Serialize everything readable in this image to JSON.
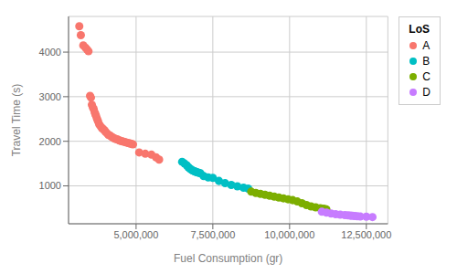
{
  "chart_data": {
    "type": "scatter",
    "xlabel": "Fuel Consumption (gr)",
    "ylabel": "Travel Time (s)",
    "legend_title": "LoS",
    "legend": "right",
    "grid": true,
    "xlim": [
      2800000,
      13200000
    ],
    "ylim": [
      150,
      4800
    ],
    "xticks": [
      {
        "value": 5000000,
        "label": "5,000,000"
      },
      {
        "value": 7500000,
        "label": "7,500,000"
      },
      {
        "value": 10000000,
        "label": "10,000,000"
      },
      {
        "value": 12500000,
        "label": "12,500,000"
      }
    ],
    "yticks": [
      1000,
      2000,
      3000,
      4000
    ],
    "series": [
      {
        "name": "A",
        "color": "#F8766D",
        "x": [
          3150000,
          3200000,
          3280000,
          3350000,
          3400000,
          3450000,
          3500000,
          3530000,
          3560000,
          3590000,
          3620000,
          3650000,
          3680000,
          3700000,
          3730000,
          3760000,
          3800000,
          3840000,
          3880000,
          3920000,
          3960000,
          4000000,
          4050000,
          4100000,
          4150000,
          4200000,
          4250000,
          4300000,
          4350000,
          4400000,
          4450000,
          4500000,
          4550000,
          4600000,
          4650000,
          4700000,
          4750000,
          4800000,
          4850000,
          4900000,
          5100000,
          5300000,
          5500000,
          5650000,
          5750000
        ],
        "values": [
          4580,
          4380,
          4150,
          4100,
          4060,
          4020,
          3020,
          2980,
          2820,
          2760,
          2720,
          2650,
          2600,
          2560,
          2500,
          2450,
          2380,
          2340,
          2300,
          2280,
          2250,
          2220,
          2180,
          2140,
          2130,
          2100,
          2080,
          2060,
          2050,
          2040,
          2020,
          2010,
          2000,
          1990,
          1980,
          1970,
          1960,
          1950,
          1940,
          1930,
          1750,
          1720,
          1700,
          1640,
          1590
        ]
      },
      {
        "name": "B",
        "color": "#00BFC4",
        "x": [
          6500000,
          6580000,
          6650000,
          6700000,
          6750000,
          6800000,
          6830000,
          6860000,
          6890000,
          6920000,
          6960000,
          7000000,
          7050000,
          7100000,
          7200000,
          7350000,
          7500000,
          7700000,
          7900000,
          8100000,
          8300000,
          8500000,
          8650000
        ],
        "values": [
          1540,
          1500,
          1460,
          1420,
          1390,
          1360,
          1350,
          1340,
          1330,
          1320,
          1310,
          1300,
          1290,
          1280,
          1220,
          1190,
          1180,
          1110,
          1060,
          1020,
          990,
          960,
          940
        ]
      },
      {
        "name": "C",
        "color": "#7CAE00",
        "x": [
          8750000,
          8900000,
          9050000,
          9200000,
          9350000,
          9500000,
          9650000,
          9800000,
          9950000,
          10100000,
          10250000,
          10400000,
          10550000,
          10700000,
          10850000,
          11000000,
          11100000,
          11150000,
          11200000
        ],
        "values": [
          870,
          840,
          820,
          800,
          780,
          760,
          740,
          720,
          700,
          680,
          650,
          610,
          570,
          540,
          520,
          500,
          490,
          480,
          470
        ]
      },
      {
        "name": "D",
        "color": "#C77CFF",
        "x": [
          11050000,
          11200000,
          11350000,
          11500000,
          11650000,
          11800000,
          11900000,
          11980000,
          12050000,
          12120000,
          12200000,
          12300000,
          12500000,
          12700000
        ],
        "values": [
          420,
          400,
          380,
          365,
          355,
          345,
          338,
          332,
          328,
          325,
          320,
          315,
          308,
          300
        ]
      }
    ]
  }
}
